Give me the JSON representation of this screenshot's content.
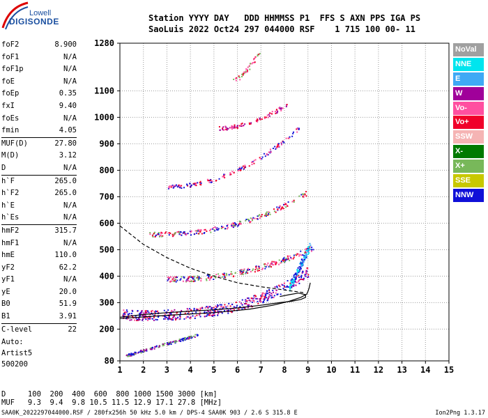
{
  "logo": {
    "line1": "Lowell",
    "line2": "DIGISONDE"
  },
  "header": {
    "line1": "Station YYYY DAY   DDD HHMMSS P1  FFS S AXN PPS IGA PS",
    "line2": "SaoLuis 2022 Oct24 297 044000 RSF    1 715 100 00- 11"
  },
  "params": [
    {
      "k": "foF2",
      "v": "8.900"
    },
    {
      "k": "foF1",
      "v": "N/A"
    },
    {
      "k": "foF1p",
      "v": "N/A"
    },
    {
      "k": "foE",
      "v": "N/A"
    },
    {
      "k": "foEp",
      "v": "0.35"
    },
    {
      "k": "fxI",
      "v": "9.40"
    },
    {
      "k": "foEs",
      "v": "N/A"
    },
    {
      "k": "fmin",
      "v": "4.05"
    },
    {
      "k": "MUF(D)",
      "v": "27.80"
    },
    {
      "k": "M(D)",
      "v": "3.12"
    },
    {
      "k": "D",
      "v": "N/A"
    },
    {
      "k": "h`F",
      "v": "265.0"
    },
    {
      "k": "h`F2",
      "v": "265.0"
    },
    {
      "k": "h`E",
      "v": "N/A"
    },
    {
      "k": "h`Es",
      "v": "N/A"
    },
    {
      "k": "hmF2",
      "v": "315.7"
    },
    {
      "k": "hmF1",
      "v": "N/A"
    },
    {
      "k": "hmE",
      "v": "110.0"
    },
    {
      "k": "yF2",
      "v": "62.2"
    },
    {
      "k": "yF1",
      "v": "N/A"
    },
    {
      "k": "yE",
      "v": "20.0"
    },
    {
      "k": "B0",
      "v": "51.9"
    },
    {
      "k": "B1",
      "v": "3.91"
    },
    {
      "k": "C-level",
      "v": "22"
    }
  ],
  "auto": {
    "line1": "Auto:",
    "line2": "Artist5",
    "line3": "500200"
  },
  "legend": [
    {
      "label": "NoVal",
      "color": "#a0a0a0"
    },
    {
      "label": "NNE",
      "color": "#00e5ee"
    },
    {
      "label": "E",
      "color": "#3fa9f5"
    },
    {
      "label": "W",
      "color": "#a0009a"
    },
    {
      "label": "Vo-",
      "color": "#ff4fa0"
    },
    {
      "label": "Vo+",
      "color": "#f0002a"
    },
    {
      "label": "SSW",
      "color": "#f5b4b4"
    },
    {
      "label": "X-",
      "color": "#007a00"
    },
    {
      "label": "X+",
      "color": "#78b85a"
    },
    {
      "label": "SSE",
      "color": "#c8c800"
    },
    {
      "label": "NNW",
      "color": "#1010d8"
    }
  ],
  "chart_data": {
    "type": "scatter",
    "x_ticks": [
      1,
      2,
      3,
      4,
      5,
      6,
      7,
      8,
      9,
      10,
      11,
      12,
      13,
      14,
      15
    ],
    "y_ticks": [
      80,
      200,
      300,
      400,
      500,
      600,
      700,
      800,
      900,
      1000,
      1100,
      1280
    ],
    "xlim": [
      1,
      15
    ],
    "ylim": [
      80,
      1280
    ],
    "grid": true,
    "traces": [
      {
        "type": "line",
        "name": "",
        "color": "#000",
        "dash": false,
        "points": [
          [
            1.0,
            245
          ],
          [
            2,
            255
          ],
          [
            3,
            262
          ],
          [
            4,
            268
          ],
          [
            5,
            273
          ],
          [
            6,
            280
          ],
          [
            7,
            290
          ],
          [
            7.8,
            300
          ],
          [
            8.3,
            305
          ],
          [
            8.7,
            312
          ],
          [
            8.9,
            320
          ],
          [
            8.9,
            330
          ],
          [
            8.6,
            336
          ],
          [
            8.2,
            330
          ],
          [
            7.8,
            323
          ]
        ]
      },
      {
        "type": "line",
        "name": "",
        "color": "#000",
        "dash": false,
        "points": [
          [
            1.0,
            240
          ],
          [
            3,
            252
          ],
          [
            5,
            262
          ],
          [
            6.5,
            275
          ],
          [
            7.5,
            290
          ],
          [
            8.2,
            305
          ],
          [
            8.7,
            320
          ],
          [
            8.95,
            332
          ],
          [
            9.0,
            342
          ],
          [
            9.05,
            355
          ],
          [
            9.1,
            375
          ]
        ]
      },
      {
        "type": "line",
        "name": "",
        "color": "#000",
        "dash": true,
        "points": [
          [
            1.0,
            590
          ],
          [
            2,
            520
          ],
          [
            3,
            470
          ],
          [
            4,
            430
          ],
          [
            5,
            400
          ],
          [
            6,
            375
          ],
          [
            7,
            360
          ],
          [
            8,
            348
          ],
          [
            8.8,
            338
          ]
        ]
      }
    ]
  },
  "footer": {
    "line1": "D     100  200  400  600  800 1000 1500 3000 [km]",
    "line2": "MUF   9.3  9.4  9.8 10.5 11.5 12.9 17.1 27.8 [MHz]"
  },
  "bottom": {
    "left": "SAA0K_2022297044000.RSF / 280fx256h 50 kHz 5.0 km / DPS-4 SAA0K 903 / 2.6 S 315.8 E",
    "right": "Ion2Png 1.3.17"
  }
}
